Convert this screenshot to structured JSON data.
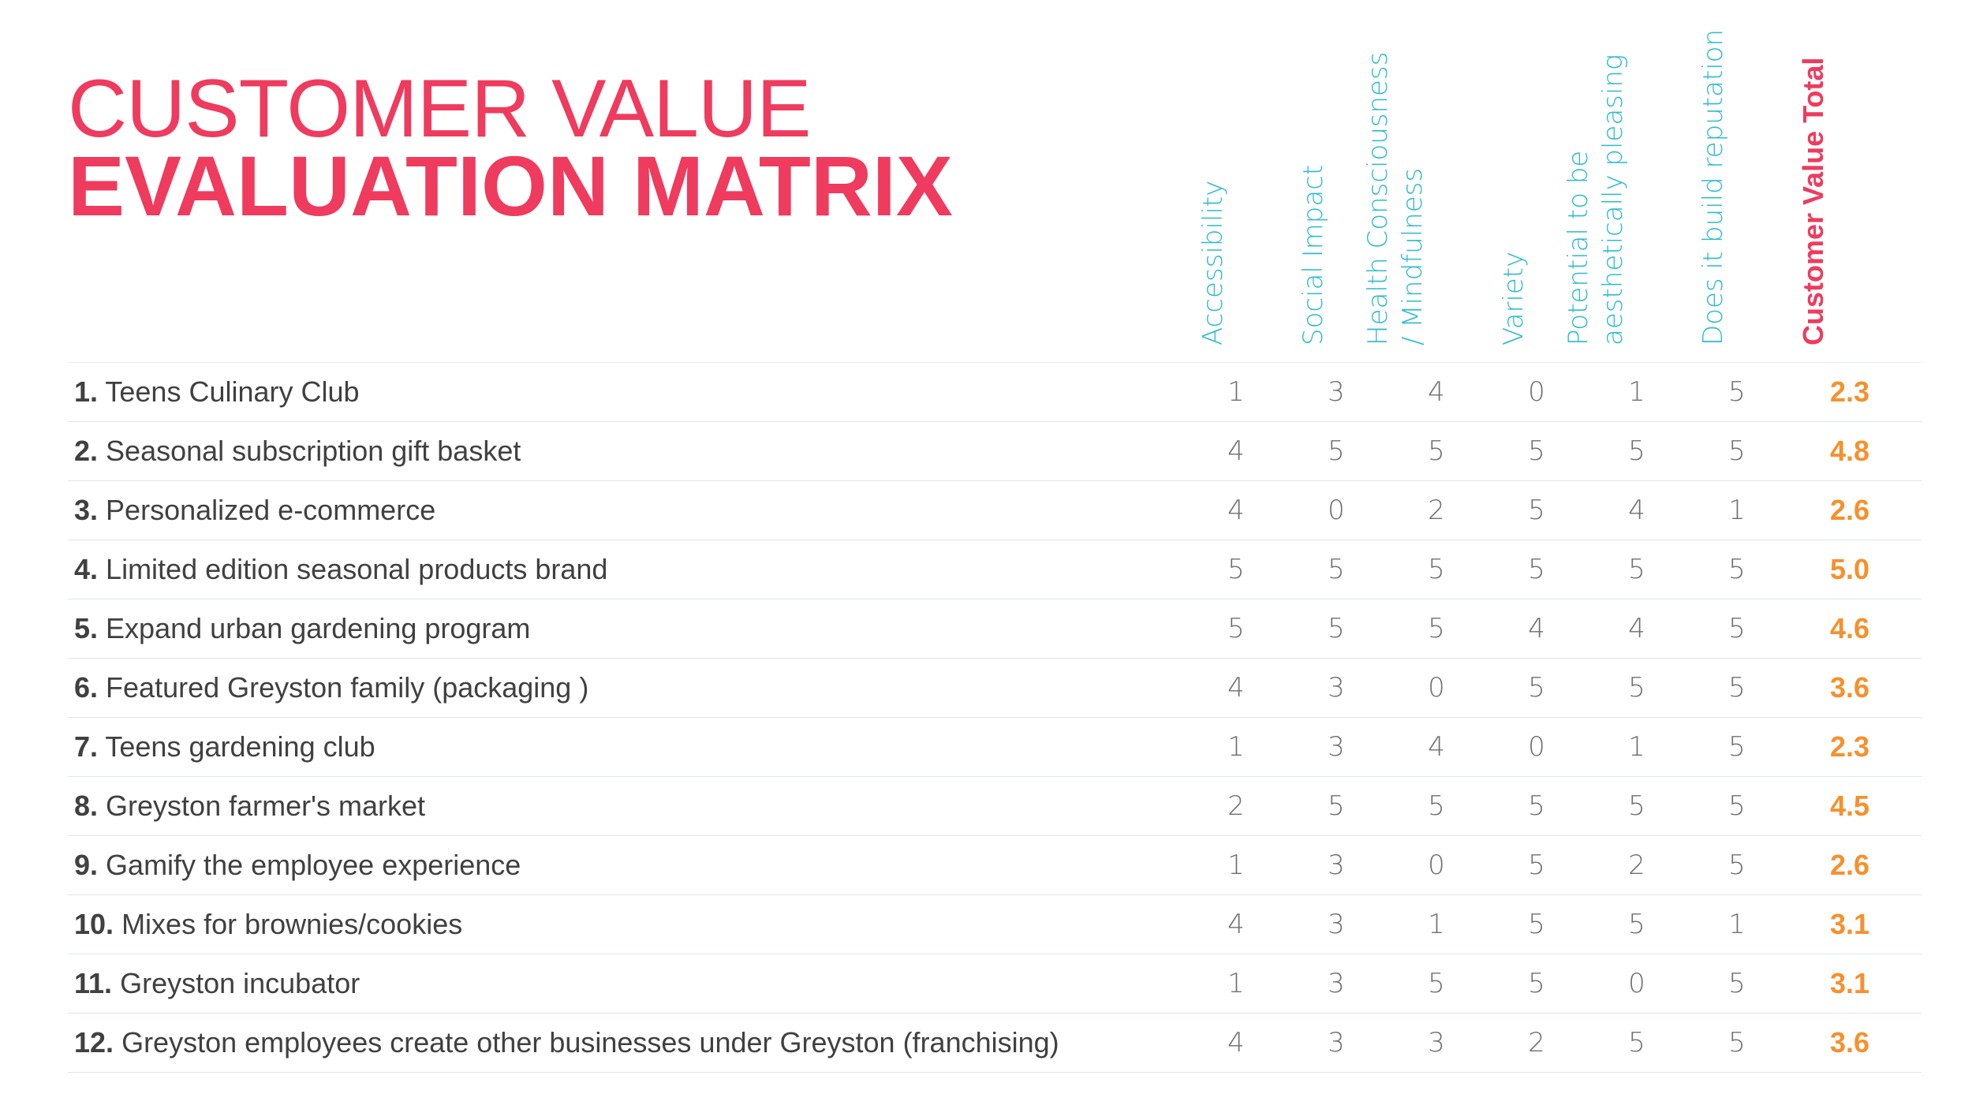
{
  "title": {
    "line1": "CUSTOMER VALUE",
    "line2": "EVALUATION MATRIX"
  },
  "columns": [
    {
      "label": "Accessibility"
    },
    {
      "label": "Social Impact"
    },
    {
      "label": "Health Consciousness / Mindfulness"
    },
    {
      "label": "Variety"
    },
    {
      "label": "Potential to be aesthetically pleasing"
    },
    {
      "label": "Does it build reputation"
    },
    {
      "label": "Customer Value Total"
    }
  ],
  "rows": [
    {
      "num": "1.",
      "label": "Teens Culinary Club",
      "values": [
        "1",
        "3",
        "4",
        "0",
        "1",
        "5"
      ],
      "total": "2.3"
    },
    {
      "num": "2.",
      "label": "Seasonal subscription gift basket",
      "values": [
        "4",
        "5",
        "5",
        "5",
        "5",
        "5"
      ],
      "total": "4.8"
    },
    {
      "num": "3.",
      "label": "Personalized e-commerce",
      "values": [
        "4",
        "0",
        "2",
        "5",
        "4",
        "1"
      ],
      "total": "2.6"
    },
    {
      "num": "4.",
      "label": "Limited edition seasonal products brand",
      "values": [
        "5",
        "5",
        "5",
        "5",
        "5",
        "5"
      ],
      "total": "5.0"
    },
    {
      "num": "5.",
      "label": "Expand urban gardening program",
      "values": [
        "5",
        "5",
        "5",
        "4",
        "4",
        "5"
      ],
      "total": "4.6"
    },
    {
      "num": "6.",
      "label": "Featured Greyston family (packaging )",
      "values": [
        "4",
        "3",
        "0",
        "5",
        "5",
        "5"
      ],
      "total": "3.6"
    },
    {
      "num": "7.",
      "label": "Teens gardening club",
      "values": [
        "1",
        "3",
        "4",
        "0",
        "1",
        "5"
      ],
      "total": "2.3"
    },
    {
      "num": "8.",
      "label": "Greyston farmer's market",
      "values": [
        "2",
        "5",
        "5",
        "5",
        "5",
        "5"
      ],
      "total": "4.5"
    },
    {
      "num": "9.",
      "label": "Gamify the employee experience",
      "values": [
        "1",
        "3",
        "0",
        "5",
        "2",
        "5"
      ],
      "total": "2.6"
    },
    {
      "num": "10.",
      "label": "Mixes for brownies/cookies",
      "values": [
        "4",
        "3",
        "1",
        "5",
        "5",
        "1"
      ],
      "total": "3.1"
    },
    {
      "num": "11.",
      "label": "Greyston incubator",
      "values": [
        "1",
        "3",
        "5",
        "5",
        "0",
        "5"
      ],
      "total": "3.1"
    },
    {
      "num": "12.",
      "label": "Greyston employees create other businesses under Greyston (franchising)",
      "values": [
        "4",
        "3",
        "3",
        "2",
        "5",
        "5"
      ],
      "total": "3.6"
    }
  ],
  "colors": {
    "title": "#ef3b5e",
    "column_header": "#2bbccb",
    "total_header": "#ef3b5e",
    "total_value": "#f5912d",
    "row_text": "#404040",
    "score_text": "#6f6f6f",
    "rule": "#dde8eb"
  }
}
